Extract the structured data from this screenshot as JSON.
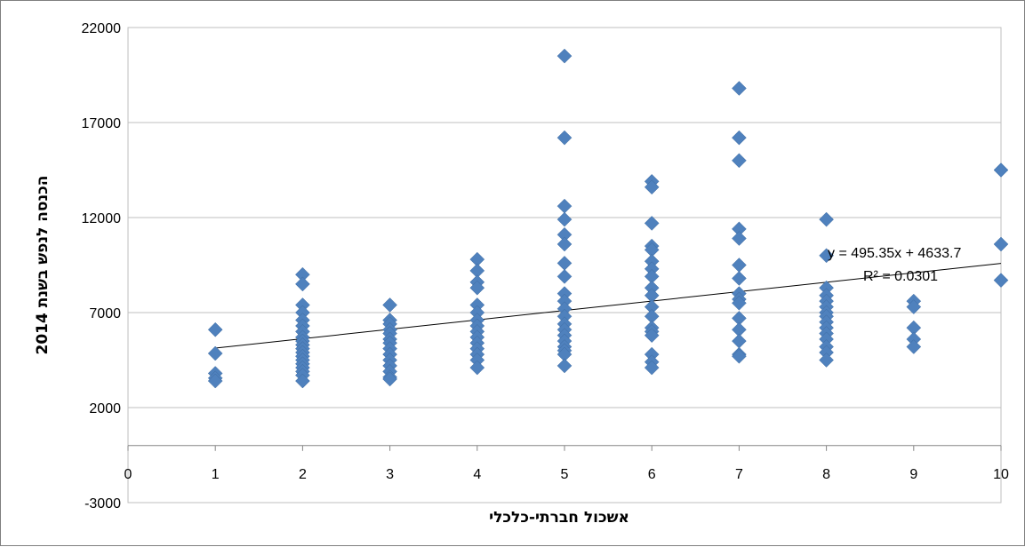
{
  "chart_data": {
    "type": "scatter",
    "title": "",
    "xlabel": "אשכול חברתי-כלכלי",
    "ylabel": "הכנסה לנפש בשנת 2014",
    "xlim": [
      0,
      10
    ],
    "ylim": [
      -3000,
      22000
    ],
    "x_ticks": [
      "0",
      "1",
      "2",
      "3",
      "4",
      "5",
      "6",
      "7",
      "8",
      "9",
      "10"
    ],
    "y_ticks": [
      "-3000",
      "2000",
      "7000",
      "12000",
      "17000",
      "22000"
    ],
    "grid": "horizontal",
    "marker_color": "#4f81bd",
    "trendline_color": "#000000",
    "trendline": {
      "slope": 495.35,
      "intercept": 4633.7
    },
    "equation_label": "y = 495.35x + 4633.7",
    "r2_label": "R² = 0.0301",
    "points": [
      [
        1,
        6100
      ],
      [
        1,
        4850
      ],
      [
        1,
        3800
      ],
      [
        1,
        3550
      ],
      [
        1,
        3400
      ],
      [
        2,
        9000
      ],
      [
        2,
        8500
      ],
      [
        2,
        7400
      ],
      [
        2,
        7000
      ],
      [
        2,
        6600
      ],
      [
        2,
        6300
      ],
      [
        2,
        6000
      ],
      [
        2,
        5700
      ],
      [
        2,
        5500
      ],
      [
        2,
        5300
      ],
      [
        2,
        5100
      ],
      [
        2,
        4900
      ],
      [
        2,
        4700
      ],
      [
        2,
        4500
      ],
      [
        2,
        4300
      ],
      [
        2,
        4100
      ],
      [
        2,
        3900
      ],
      [
        2,
        3700
      ],
      [
        2,
        3400
      ],
      [
        3,
        7400
      ],
      [
        3,
        6600
      ],
      [
        3,
        6400
      ],
      [
        3,
        6100
      ],
      [
        3,
        5900
      ],
      [
        3,
        5600
      ],
      [
        3,
        5400
      ],
      [
        3,
        5100
      ],
      [
        3,
        4800
      ],
      [
        3,
        4500
      ],
      [
        3,
        4200
      ],
      [
        3,
        3900
      ],
      [
        3,
        3600
      ],
      [
        3,
        3500
      ],
      [
        4,
        9800
      ],
      [
        4,
        9200
      ],
      [
        4,
        8600
      ],
      [
        4,
        8300
      ],
      [
        4,
        7400
      ],
      [
        4,
        7000
      ],
      [
        4,
        6600
      ],
      [
        4,
        6300
      ],
      [
        4,
        6000
      ],
      [
        4,
        5700
      ],
      [
        4,
        5400
      ],
      [
        4,
        5100
      ],
      [
        4,
        4800
      ],
      [
        4,
        4500
      ],
      [
        4,
        4100
      ],
      [
        5,
        20500
      ],
      [
        5,
        16200
      ],
      [
        5,
        12600
      ],
      [
        5,
        11900
      ],
      [
        5,
        11100
      ],
      [
        5,
        10600
      ],
      [
        5,
        9600
      ],
      [
        5,
        8900
      ],
      [
        5,
        8000
      ],
      [
        5,
        7600
      ],
      [
        5,
        7200
      ],
      [
        5,
        6800
      ],
      [
        5,
        6400
      ],
      [
        5,
        6100
      ],
      [
        5,
        5800
      ],
      [
        5,
        5500
      ],
      [
        5,
        5200
      ],
      [
        5,
        5000
      ],
      [
        5,
        4800
      ],
      [
        5,
        4200
      ],
      [
        6,
        13900
      ],
      [
        6,
        13600
      ],
      [
        6,
        11700
      ],
      [
        6,
        10500
      ],
      [
        6,
        10300
      ],
      [
        6,
        9700
      ],
      [
        6,
        9300
      ],
      [
        6,
        8900
      ],
      [
        6,
        8300
      ],
      [
        6,
        7900
      ],
      [
        6,
        7300
      ],
      [
        6,
        6800
      ],
      [
        6,
        6200
      ],
      [
        6,
        6000
      ],
      [
        6,
        5800
      ],
      [
        6,
        4800
      ],
      [
        6,
        4400
      ],
      [
        6,
        4100
      ],
      [
        7,
        18800
      ],
      [
        7,
        16200
      ],
      [
        7,
        15000
      ],
      [
        7,
        11400
      ],
      [
        7,
        10900
      ],
      [
        7,
        9500
      ],
      [
        7,
        8800
      ],
      [
        7,
        8000
      ],
      [
        7,
        7700
      ],
      [
        7,
        7500
      ],
      [
        7,
        6700
      ],
      [
        7,
        6100
      ],
      [
        7,
        5500
      ],
      [
        7,
        4800
      ],
      [
        7,
        4700
      ],
      [
        8,
        11900
      ],
      [
        8,
        10000
      ],
      [
        8,
        8300
      ],
      [
        8,
        7900
      ],
      [
        8,
        7600
      ],
      [
        8,
        7300
      ],
      [
        8,
        7000
      ],
      [
        8,
        6800
      ],
      [
        8,
        6500
      ],
      [
        8,
        6200
      ],
      [
        8,
        5900
      ],
      [
        8,
        5600
      ],
      [
        8,
        5200
      ],
      [
        8,
        4900
      ],
      [
        8,
        4500
      ],
      [
        9,
        7600
      ],
      [
        9,
        7300
      ],
      [
        9,
        6200
      ],
      [
        9,
        5600
      ],
      [
        9,
        5200
      ],
      [
        10,
        14500
      ],
      [
        10,
        10600
      ],
      [
        10,
        8700
      ]
    ]
  }
}
